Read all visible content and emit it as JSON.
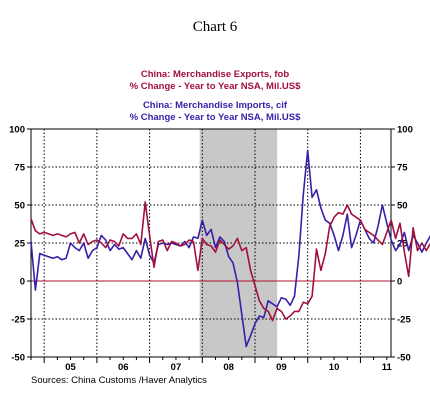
{
  "chart_data": {
    "type": "line",
    "title": "Chart 6",
    "source": "Sources:  China Customs /Haver Analytics",
    "x_tick_labels": [
      "05",
      "06",
      "07",
      "08",
      "09",
      "10",
      "11"
    ],
    "x_range": [
      2004.75,
      2011.58
    ],
    "ylim": [
      -50,
      100
    ],
    "y_ticks": [
      100,
      75,
      50,
      25,
      0,
      -25,
      -50
    ],
    "y_tick_labels": [
      "100",
      "75",
      "50",
      "25",
      "0",
      "-25",
      "-50"
    ],
    "recession_shade": [
      2007.95,
      2009.42
    ],
    "zero_line_color": "#b01030",
    "grid": "vertical dotted at year boundaries",
    "series": [
      {
        "name": "Exports",
        "legend_line1": "China:  Merchandise Exports, fob",
        "legend_line2": "% Change - Year to Year     NSA, Mil.US$",
        "color": "#a0103a",
        "x_start": 2004.75,
        "x_step": 0.0833333,
        "values": [
          41,
          33,
          31,
          32,
          31,
          30,
          31,
          30,
          29,
          31,
          32,
          25,
          31,
          24,
          26,
          27,
          25,
          22,
          27,
          26,
          23,
          31,
          28,
          28,
          31,
          24,
          52,
          30,
          9,
          26,
          27,
          20,
          26,
          25,
          23,
          24,
          27,
          26,
          7,
          28,
          24,
          23,
          19,
          27,
          24,
          21,
          23,
          28,
          20,
          22,
          7,
          -3,
          -13,
          -18,
          -20,
          -26,
          -18,
          -20,
          -25,
          -23,
          -20,
          -20,
          -14,
          -15,
          -10,
          21,
          7,
          18,
          36,
          42,
          45,
          44,
          50,
          44,
          42,
          40,
          34,
          32,
          30,
          27,
          24,
          32,
          40,
          28,
          38,
          19,
          3,
          35,
          20,
          25,
          20,
          25,
          19,
          24,
          20,
          15
        ]
      },
      {
        "name": "Imports",
        "legend_line1": "China:  Merchandise Imports, cif",
        "legend_line2": "% Change - Year to Year     NSA, Mil.US$",
        "color": "#3a1ea8",
        "x_start": 2004.75,
        "x_step": 0.0833333,
        "values": [
          26,
          -6,
          18,
          17,
          16,
          15,
          16,
          14,
          15,
          25,
          22,
          20,
          25,
          15,
          20,
          22,
          30,
          27,
          20,
          24,
          21,
          22,
          18,
          14,
          20,
          15,
          28,
          17,
          12,
          24,
          25,
          24,
          25,
          24,
          23,
          26,
          22,
          29,
          28,
          40,
          30,
          34,
          22,
          29,
          26,
          16,
          12,
          -1,
          -22,
          -43,
          -36,
          -28,
          -23,
          -24,
          -13,
          -15,
          -17,
          -11,
          -12,
          -16,
          -10,
          17,
          57,
          86,
          55,
          60,
          48,
          40,
          38,
          30,
          20,
          30,
          44,
          22,
          30,
          40,
          34,
          28,
          25,
          36,
          50,
          38,
          27,
          20,
          24,
          32,
          20,
          30,
          25,
          19,
          25,
          30,
          24,
          20,
          18,
          22
        ]
      }
    ]
  }
}
